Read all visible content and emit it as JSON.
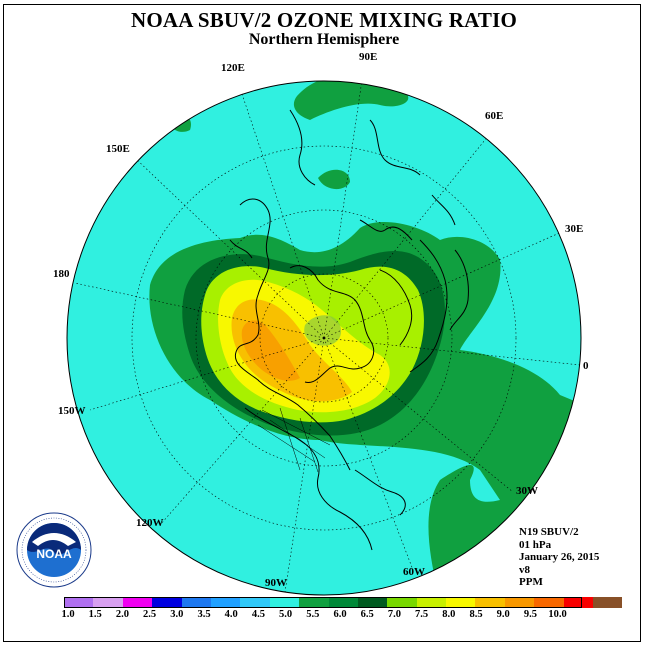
{
  "title": "NOAA SBUV/2 OZONE MIXING RATIO",
  "subtitle": "Northern Hemisphere",
  "longitude_labels": [
    "90E",
    "60E",
    "30E",
    "0",
    "30W",
    "60W",
    "90W",
    "120W",
    "150W",
    "180",
    "150E",
    "120E"
  ],
  "info": {
    "satellite": "N19 SBUV/2",
    "level": "01 hPa",
    "date": "January 26, 2015",
    "version": "v8",
    "units": "PPM"
  },
  "logo": {
    "text": "NOAA",
    "ring_text": "NATIONAL OCEANIC AND ATMOSPHERIC ADMINISTRATION · U.S. DEPARTMENT OF COMMERCE"
  },
  "legend": {
    "ticks": [
      "1.0",
      "1.5",
      "2.0",
      "2.5",
      "3.0",
      "3.5",
      "4.0",
      "4.5",
      "5.0",
      "5.5",
      "6.0",
      "6.5",
      "7.0",
      "7.5",
      "8.0",
      "8.5",
      "9.0",
      "9.5",
      "10.0"
    ],
    "colors": [
      "#b070f0",
      "#d8a0f0",
      "#f000f0",
      "#0000e0",
      "#1e78f0",
      "#20a0ff",
      "#30c8f8",
      "#30f0e0",
      "#10a040",
      "#008838",
      "#005a20",
      "#78d800",
      "#c8f000",
      "#f8f800",
      "#f8c000",
      "#f89800",
      "#f86800",
      "#f80000",
      "#885028"
    ]
  },
  "colors": {
    "ocean_cyan": "#30f0e0",
    "green_mid": "#10a040",
    "green_dark": "#006a28",
    "yellow_green": "#a8f000",
    "yellow": "#f8f800",
    "orange": "#f8c000",
    "orange_dark": "#f8a000"
  }
}
